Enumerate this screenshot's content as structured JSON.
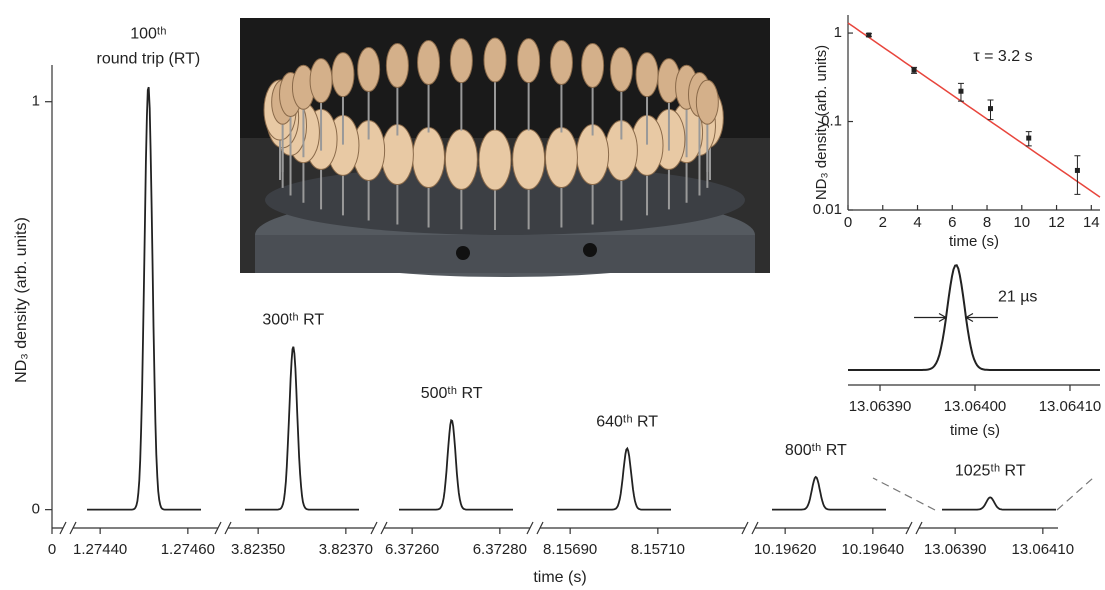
{
  "chart_data": [
    {
      "type": "broken-line",
      "y_label": "ND₃ density (arb. units)",
      "x_label": "time (s)",
      "ylim": [
        -0.045,
        1.09
      ],
      "yticks": [
        0,
        1
      ],
      "x_origin_tick": 0,
      "color": "#222222",
      "segments": [
        {
          "xlim": [
            1.27437,
            1.27463
          ],
          "xticks": [
            {
              "value": 1.2744,
              "label": "1.27440"
            },
            {
              "value": 1.2746,
              "label": "1.27460"
            }
          ],
          "peak_x": 1.27451,
          "peak": 1.04,
          "label": [
            "100ᵗʰ",
            "round trip (RT)"
          ]
        },
        {
          "xlim": [
            3.82347,
            3.82373
          ],
          "xticks": [
            {
              "value": 3.8235,
              "label": "3.82350"
            },
            {
              "value": 3.8237,
              "label": "3.82370"
            }
          ],
          "peak_x": 3.82358,
          "peak": 0.4,
          "label": [
            "300ᵗʰ RT"
          ]
        },
        {
          "xlim": [
            6.37257,
            6.37283
          ],
          "xticks": [
            {
              "value": 6.3726,
              "label": "6.37260"
            },
            {
              "value": 6.3728,
              "label": "6.37280"
            }
          ],
          "peak_x": 6.37269,
          "peak": 0.22,
          "label": [
            "500ᵗʰ RT"
          ]
        },
        {
          "xlim": [
            8.15687,
            8.15713
          ],
          "xticks": [
            {
              "value": 8.1569,
              "label": "8.15690"
            },
            {
              "value": 8.1571,
              "label": "8.15710"
            }
          ],
          "peak_x": 8.15703,
          "peak": 0.15,
          "label": [
            "640ᵗʰ RT"
          ]
        },
        {
          "xlim": [
            10.19617,
            10.19643
          ],
          "xticks": [
            {
              "value": 10.1962,
              "label": "10.19620"
            },
            {
              "value": 10.1964,
              "label": "10.19640"
            }
          ],
          "peak_x": 10.19627,
          "peak": 0.08,
          "label": [
            "800ᵗʰ RT"
          ]
        },
        {
          "xlim": [
            13.06387,
            13.06413
          ],
          "xticks": [
            {
              "value": 13.0639,
              "label": "13.06390"
            },
            {
              "value": 13.0641,
              "label": "13.06410"
            }
          ],
          "peak_x": 13.06398,
          "peak": 0.03,
          "label": [
            "1025ᵗʰ RT"
          ]
        }
      ]
    },
    {
      "type": "scatter",
      "log_y": true,
      "x": [
        1.2,
        3.8,
        6.5,
        8.2,
        10.4,
        13.2
      ],
      "values": [
        0.95,
        0.38,
        0.22,
        0.14,
        0.065,
        0.028
      ],
      "errors": [
        0.04,
        0.03,
        0.05,
        0.035,
        0.012,
        0.013
      ],
      "color": "#222222",
      "fit": {
        "amplitude": 1.3,
        "tau": 3.2,
        "color": "#e8453c"
      },
      "annotation": "τ = 3.2 s",
      "xlim": [
        0,
        14.5
      ],
      "xticks": [
        0,
        2,
        4,
        6,
        8,
        10,
        12,
        14
      ],
      "ylim": [
        0.01,
        1.6
      ],
      "yticks": [
        0.01,
        0.1,
        1
      ],
      "x_label": "time (s)",
      "y_label": "ND₃ density (arb. units)"
    },
    {
      "type": "zoom",
      "xlim": [
        13.0638663,
        13.0641316
      ],
      "xticks": [
        {
          "value": 13.0639,
          "label": "13.06390"
        },
        {
          "value": 13.064,
          "label": "13.06400"
        },
        {
          "value": 13.0641,
          "label": "13.06410"
        }
      ],
      "fwhm": 2.1e-05,
      "annotation": "21 µs",
      "x_label": "time (s)"
    }
  ]
}
